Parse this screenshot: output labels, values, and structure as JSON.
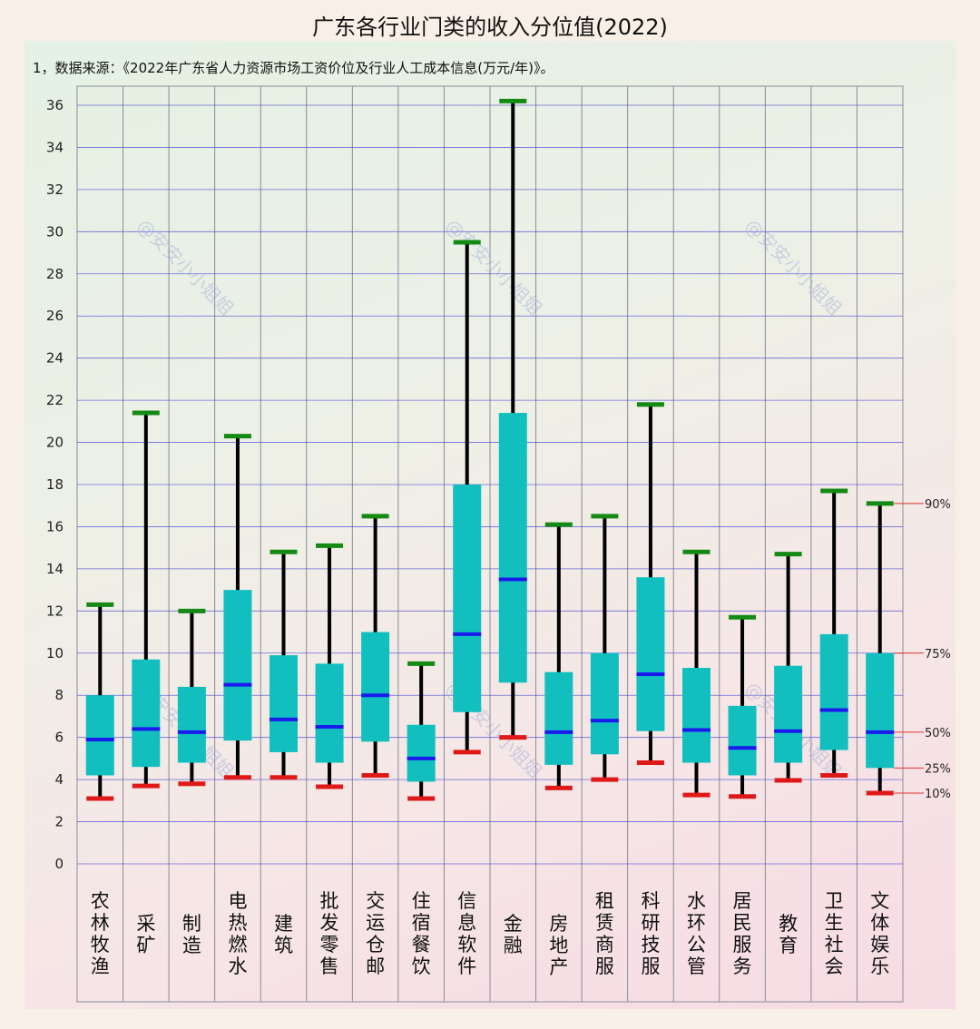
{
  "chart_data": {
    "type": "box",
    "title": "广东各行业门类的收入分位值(2022)",
    "subtitle": "1，数据来源：《2022年广东省人力资源市场工资价位及行业人工成本信息(万元/年)》。",
    "ylim": [
      0,
      36
    ],
    "yticks": [
      0,
      2,
      4,
      6,
      8,
      10,
      12,
      14,
      16,
      18,
      20,
      22,
      24,
      26,
      28,
      30,
      32,
      34,
      36
    ],
    "grid": true,
    "categories": [
      "农林牧渔",
      "采矿",
      "制造",
      "电热燃水",
      "建筑",
      "批发零售",
      "交运仓邮",
      "住宿餐饮",
      "信息软件",
      "金融",
      "房地产",
      "租赁商服",
      "科研技服",
      "水环公管",
      "居民服务",
      "教育",
      "卫生社会",
      "文体娱乐"
    ],
    "series": [
      {
        "name": "90%",
        "values": [
          12.3,
          21.4,
          12.0,
          20.3,
          14.8,
          15.1,
          16.5,
          9.5,
          29.5,
          36.2,
          16.1,
          16.5,
          21.8,
          14.8,
          11.7,
          14.7,
          17.7,
          17.1
        ]
      },
      {
        "name": "75%",
        "values": [
          8.0,
          9.7,
          8.4,
          13.0,
          9.9,
          9.5,
          11.0,
          6.6,
          18.0,
          21.4,
          9.1,
          10.0,
          13.6,
          9.3,
          7.5,
          9.4,
          10.9,
          10.0
        ]
      },
      {
        "name": "50%",
        "values": [
          5.9,
          6.4,
          6.25,
          8.5,
          6.85,
          6.5,
          8.0,
          5.0,
          10.9,
          13.5,
          6.25,
          6.8,
          9.0,
          6.35,
          5.5,
          6.3,
          7.3,
          6.25
        ]
      },
      {
        "name": "25%",
        "values": [
          4.2,
          4.6,
          4.8,
          5.85,
          5.3,
          4.8,
          5.8,
          3.9,
          7.2,
          8.6,
          4.7,
          5.2,
          6.3,
          4.8,
          4.2,
          4.8,
          5.4,
          4.55
        ]
      },
      {
        "name": "10%",
        "values": [
          3.1,
          3.7,
          3.8,
          4.1,
          4.1,
          3.66,
          4.2,
          3.1,
          5.3,
          6.0,
          3.6,
          4.0,
          4.8,
          3.27,
          3.2,
          3.96,
          4.2,
          3.36
        ]
      }
    ],
    "legend_placement": "right-annotations on last box",
    "colors": {
      "box": "#12bfbf",
      "median": "#1a1aee",
      "p90": "#148a14",
      "p10": "#e01818",
      "whisker": "#000000",
      "grid": "#4a4ad8",
      "annot": "#e03030"
    },
    "watermark": "@安安小小姐姐"
  }
}
